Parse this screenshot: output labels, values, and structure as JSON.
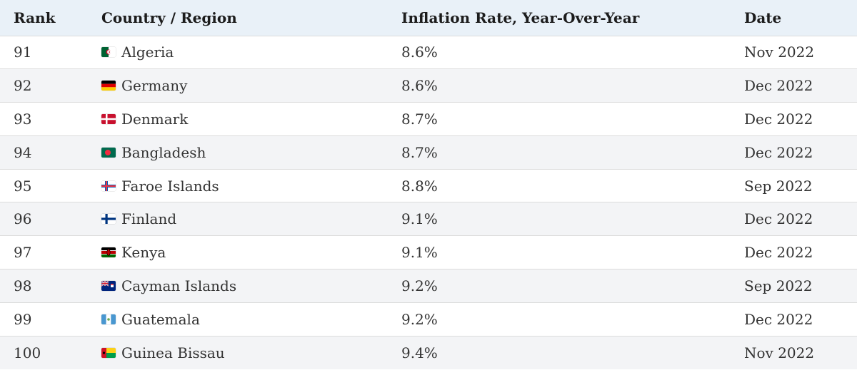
{
  "table": {
    "headers": {
      "rank": "Rank",
      "country": "Country / Region",
      "rate": "Inflation Rate, Year-Over-Year",
      "date": "Date"
    },
    "rows": [
      {
        "rank": "91",
        "flag": "algeria-flag-icon",
        "country": "Algeria",
        "rate": "8.6%",
        "date": "Nov 2022"
      },
      {
        "rank": "92",
        "flag": "germany-flag-icon",
        "country": "Germany",
        "rate": "8.6%",
        "date": "Dec 2022"
      },
      {
        "rank": "93",
        "flag": "denmark-flag-icon",
        "country": "Denmark",
        "rate": "8.7%",
        "date": "Dec 2022"
      },
      {
        "rank": "94",
        "flag": "bangladesh-flag-icon",
        "country": "Bangladesh",
        "rate": "8.7%",
        "date": "Dec 2022"
      },
      {
        "rank": "95",
        "flag": "faroe-islands-flag-icon",
        "country": "Faroe Islands",
        "rate": "8.8%",
        "date": "Sep 2022"
      },
      {
        "rank": "96",
        "flag": "finland-flag-icon",
        "country": "Finland",
        "rate": "9.1%",
        "date": "Dec 2022"
      },
      {
        "rank": "97",
        "flag": "kenya-flag-icon",
        "country": "Kenya",
        "rate": "9.1%",
        "date": "Dec 2022"
      },
      {
        "rank": "98",
        "flag": "cayman-islands-flag-icon",
        "country": "Cayman Islands",
        "rate": "9.2%",
        "date": "Sep 2022"
      },
      {
        "rank": "99",
        "flag": "guatemala-flag-icon",
        "country": "Guatemala",
        "rate": "9.2%",
        "date": "Dec 2022"
      },
      {
        "rank": "100",
        "flag": "guinea-bissau-flag-icon",
        "country": "Guinea Bissau",
        "rate": "9.4%",
        "date": "Nov 2022"
      }
    ]
  },
  "colors": {
    "header_bg": "#e9f1f8",
    "row_alt_bg": "#f3f4f6",
    "border": "#dcdcdc"
  }
}
